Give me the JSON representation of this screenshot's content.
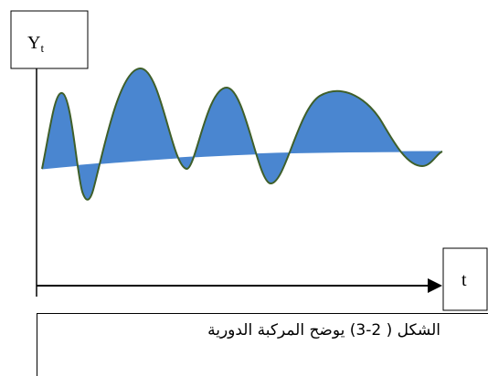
{
  "y_label": "Yt",
  "x_label": "t",
  "caption": "الشكل ( 2-3) يوضح المركبة الدورية",
  "colors": {
    "fill": "#4a86d0",
    "stroke": "#3f5f2a",
    "axis": "#000000"
  }
}
